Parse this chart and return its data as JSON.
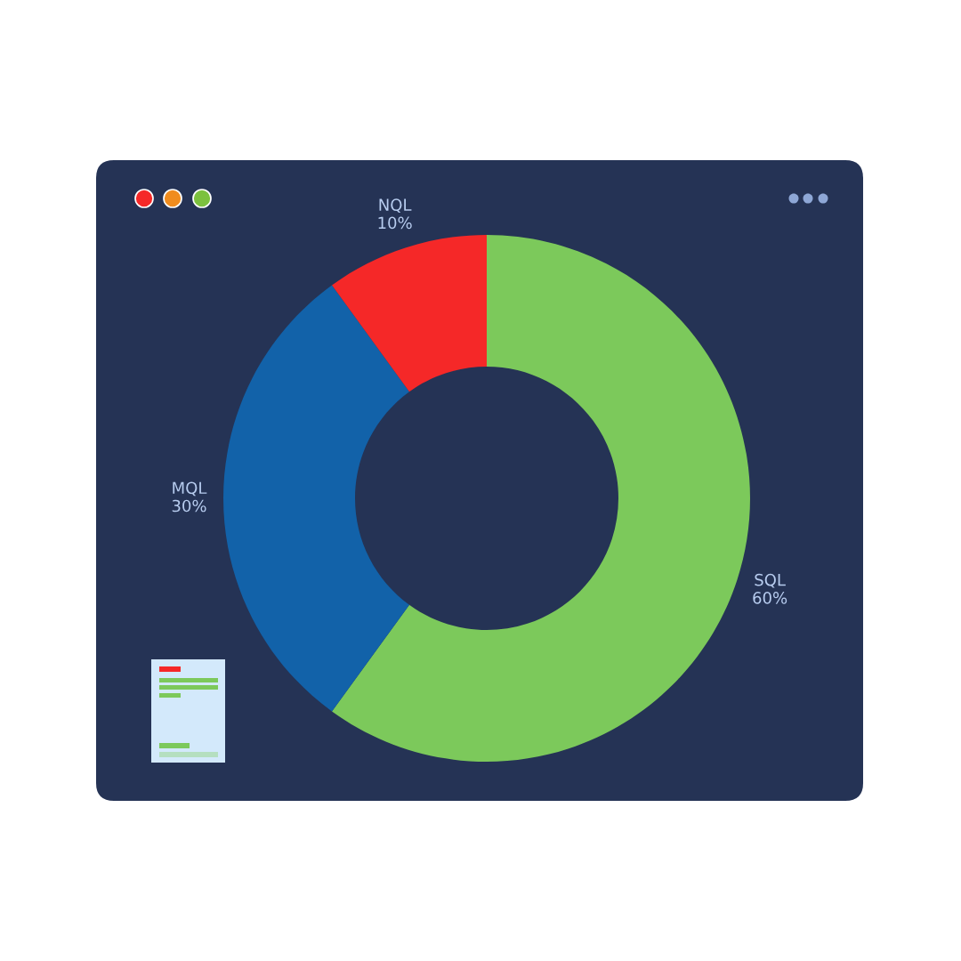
{
  "chart_data": {
    "type": "donut",
    "categories": [
      "SQL",
      "MQL",
      "NQL"
    ],
    "values": [
      60,
      30,
      10
    ],
    "value_labels": [
      "60%",
      "30%",
      "10%"
    ],
    "colors": [
      "#7cc95b",
      "#1262a9",
      "#f52828"
    ],
    "legend": false
  }
}
